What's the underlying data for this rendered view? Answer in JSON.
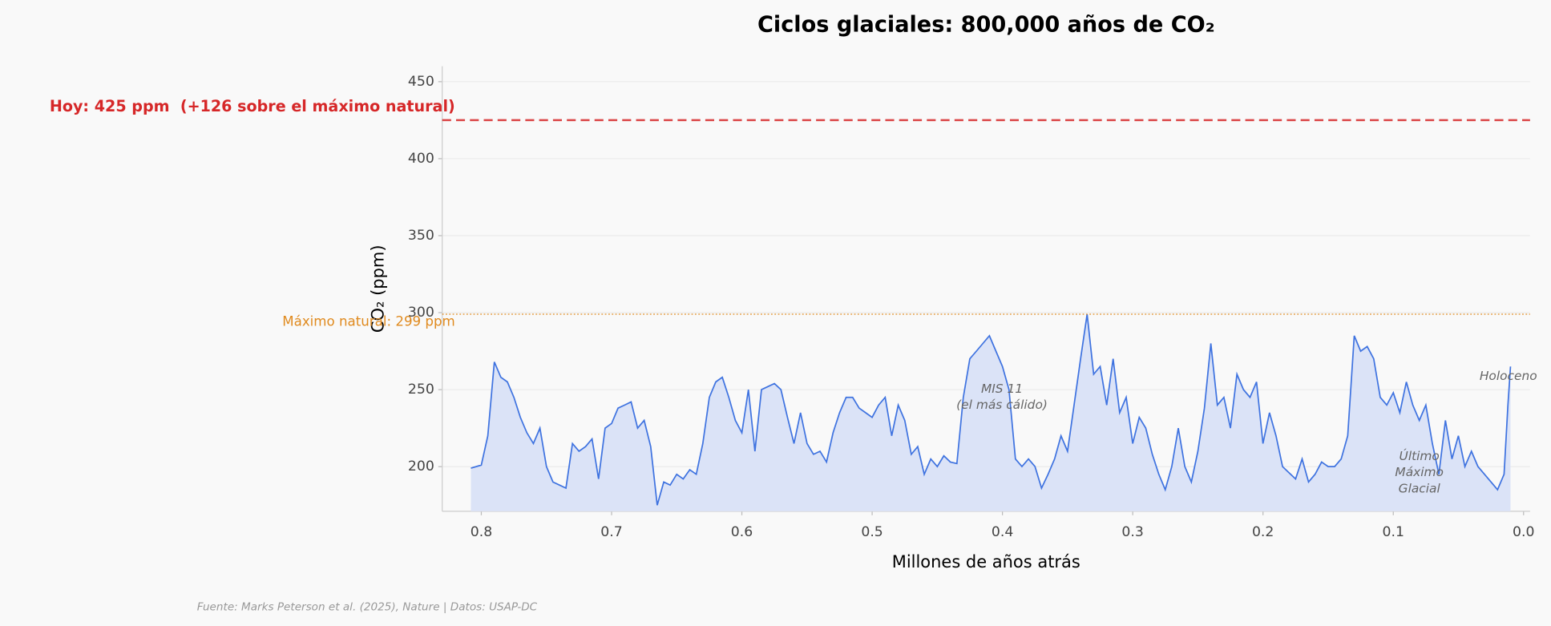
{
  "chart_data": {
    "type": "area-line",
    "title": "Ciclos glaciales: 800,000 años de CO₂",
    "xlabel": "Millones de años atrás",
    "ylabel": "CO₂ (ppm)",
    "source": "Fuente: Marks Peterson et al. (2025), Nature | Datos: USAP-DC",
    "xlim": [
      0.83,
      -0.005
    ],
    "ylim": [
      171,
      460
    ],
    "xticks": [
      0.8,
      0.7,
      0.6,
      0.5,
      0.4,
      0.3,
      0.2,
      0.1,
      {
        "value": 0,
        "label": "0.0"
      }
    ],
    "yticks": [
      200,
      250,
      300,
      350,
      400,
      450
    ],
    "grid": true,
    "reference_lines": [
      {
        "value": 425,
        "label": "Hoy: 425 ppm  (+126 sobre el máximo natural)",
        "color": "#d62728",
        "style": "dashed"
      },
      {
        "value": 299,
        "label": "Máximo natural: 299 ppm",
        "color": "#e08a1e",
        "style": "dotted"
      }
    ],
    "annotations": [
      "MIS 11\n(el más cálido)",
      "Último\nMáximo\nGlacial",
      "Holoceno"
    ],
    "color": "#3f73e0",
    "fill": "#dbe3f7",
    "x": [
      0.808,
      0.8,
      0.795,
      0.79,
      0.785,
      0.78,
      0.775,
      0.77,
      0.765,
      0.76,
      0.755,
      0.75,
      0.745,
      0.74,
      0.735,
      0.73,
      0.725,
      0.72,
      0.715,
      0.71,
      0.705,
      0.7,
      0.695,
      0.69,
      0.685,
      0.68,
      0.675,
      0.67,
      0.665,
      0.66,
      0.655,
      0.65,
      0.645,
      0.64,
      0.635,
      0.63,
      0.625,
      0.62,
      0.615,
      0.61,
      0.605,
      0.6,
      0.595,
      0.59,
      0.585,
      0.58,
      0.575,
      0.57,
      0.565,
      0.56,
      0.555,
      0.55,
      0.545,
      0.54,
      0.535,
      0.53,
      0.525,
      0.52,
      0.515,
      0.51,
      0.505,
      0.5,
      0.495,
      0.49,
      0.485,
      0.48,
      0.475,
      0.47,
      0.465,
      0.46,
      0.455,
      0.45,
      0.445,
      0.44,
      0.435,
      0.43,
      0.425,
      0.42,
      0.415,
      0.41,
      0.405,
      0.4,
      0.395,
      0.39,
      0.385,
      0.38,
      0.375,
      0.37,
      0.365,
      0.36,
      0.355,
      0.35,
      0.345,
      0.34,
      0.335,
      0.33,
      0.325,
      0.32,
      0.315,
      0.31,
      0.305,
      0.3,
      0.295,
      0.29,
      0.285,
      0.28,
      0.275,
      0.27,
      0.265,
      0.26,
      0.255,
      0.25,
      0.245,
      0.24,
      0.235,
      0.23,
      0.225,
      0.22,
      0.215,
      0.21,
      0.205,
      0.2,
      0.195,
      0.19,
      0.185,
      0.18,
      0.175,
      0.17,
      0.165,
      0.16,
      0.155,
      0.15,
      0.145,
      0.14,
      0.135,
      0.13,
      0.125,
      0.12,
      0.115,
      0.11,
      0.105,
      0.1,
      0.095,
      0.09,
      0.085,
      0.08,
      0.075,
      0.07,
      0.065,
      0.06,
      0.055,
      0.05,
      0.045,
      0.04,
      0.035,
      0.03,
      0.025,
      0.02,
      0.015,
      0.012,
      0.01
    ],
    "values": [
      199,
      201,
      220,
      268,
      258,
      255,
      245,
      232,
      222,
      215,
      225,
      200,
      190,
      188,
      186,
      215,
      210,
      213,
      218,
      192,
      225,
      228,
      238,
      240,
      242,
      225,
      230,
      213,
      175,
      190,
      188,
      195,
      192,
      198,
      195,
      215,
      245,
      255,
      258,
      245,
      230,
      222,
      250,
      210,
      250,
      252,
      254,
      250,
      232,
      215,
      235,
      215,
      208,
      210,
      203,
      222,
      235,
      245,
      245,
      238,
      235,
      232,
      240,
      245,
      220,
      240,
      230,
      208,
      213,
      195,
      205,
      200,
      207,
      203,
      202,
      245,
      270,
      275,
      280,
      285,
      275,
      265,
      250,
      205,
      200,
      205,
      200,
      186,
      195,
      205,
      220,
      210,
      240,
      270,
      299,
      260,
      265,
      240,
      270,
      235,
      245,
      215,
      232,
      225,
      208,
      195,
      185,
      200,
      225,
      200,
      190,
      210,
      238,
      280,
      240,
      245,
      225,
      260,
      250,
      245,
      255,
      215,
      235,
      220,
      200,
      196,
      192,
      205,
      190,
      195,
      203,
      200,
      200,
      205,
      220,
      285,
      275,
      278,
      270,
      245,
      240,
      248,
      235,
      255,
      240,
      230,
      240,
      215,
      195,
      230,
      205,
      220,
      200,
      210,
      200,
      195,
      190,
      185,
      195,
      240,
      265
    ]
  }
}
